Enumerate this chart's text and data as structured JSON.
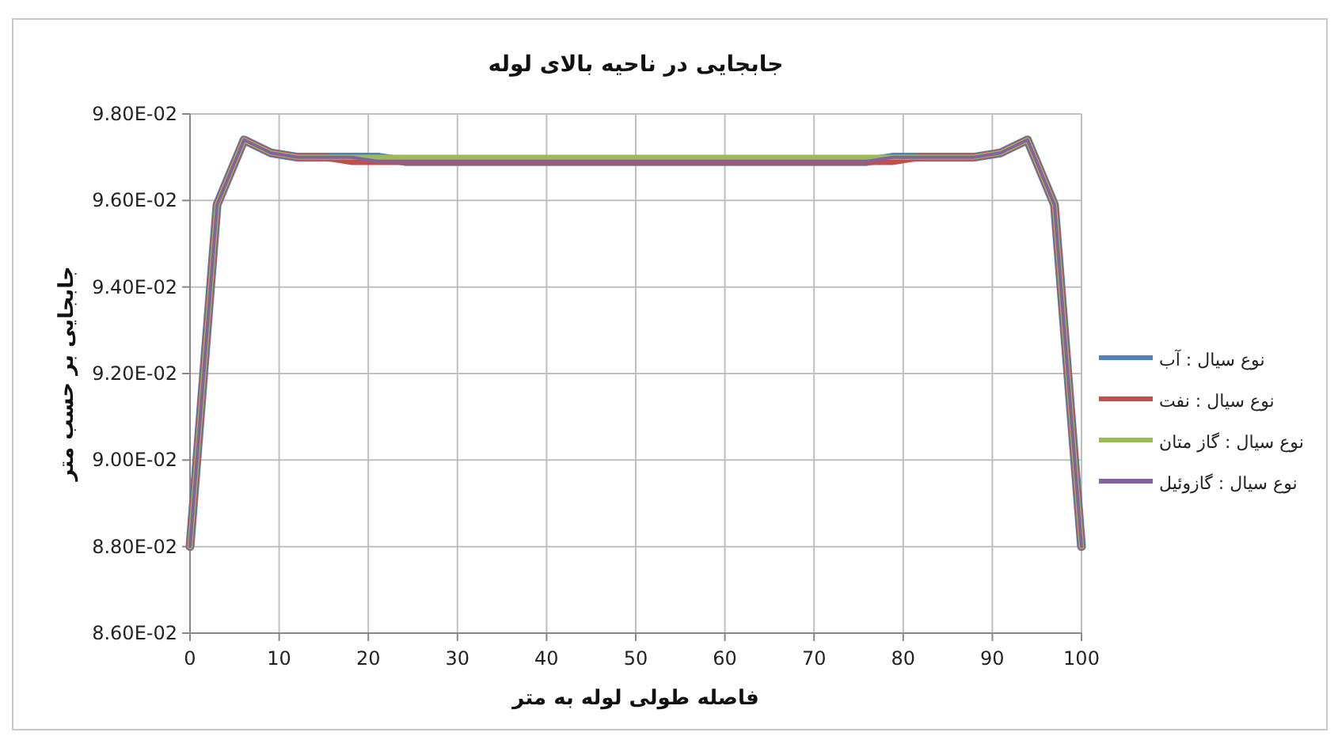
{
  "chart_data": {
    "type": "line",
    "title": "جابجایی در ناحیه بالای لوله",
    "xlabel": "فاصله طولی لوله به متر",
    "ylabel": "جابجایی بر حسب متر",
    "x": [
      0,
      3.03,
      6.06,
      9.09,
      12.12,
      15.15,
      18.18,
      21.21,
      24.24,
      27.27,
      30.3,
      33.33,
      36.36,
      39.39,
      42.42,
      45.45,
      48.48,
      51.52,
      54.55,
      57.58,
      60.61,
      63.64,
      66.67,
      69.7,
      72.73,
      75.76,
      78.79,
      81.82,
      84.85,
      87.88,
      90.91,
      93.94,
      96.97,
      100
    ],
    "series": [
      {
        "name": "نوع سیال : آب",
        "color": "#4f81bd",
        "values": [
          0.088,
          0.0959,
          0.0974,
          0.0971,
          0.097,
          0.097,
          0.097,
          0.097,
          0.0969,
          0.0969,
          0.0969,
          0.0969,
          0.0969,
          0.0969,
          0.0969,
          0.0969,
          0.0969,
          0.0969,
          0.0969,
          0.0969,
          0.0969,
          0.0969,
          0.0969,
          0.0969,
          0.0969,
          0.0969,
          0.097,
          0.097,
          0.097,
          0.097,
          0.0971,
          0.0974,
          0.0959,
          0.088
        ]
      },
      {
        "name": "نوع سیال : نفت",
        "color": "#c0504d",
        "values": [
          0.088,
          0.0959,
          0.0974,
          0.0971,
          0.097,
          0.097,
          0.0969,
          0.0969,
          0.0969,
          0.0969,
          0.0969,
          0.0969,
          0.0969,
          0.0969,
          0.0969,
          0.0969,
          0.0969,
          0.0969,
          0.0969,
          0.0969,
          0.0969,
          0.0969,
          0.0969,
          0.0969,
          0.0969,
          0.0969,
          0.0969,
          0.097,
          0.097,
          0.097,
          0.0971,
          0.0974,
          0.0959,
          0.088
        ]
      },
      {
        "name": "نوع سیال : گاز متان",
        "color": "#9bbb59",
        "values": [
          0.088,
          0.0959,
          0.0974,
          0.0971,
          0.097,
          0.097,
          0.097,
          0.097,
          0.097,
          0.097,
          0.097,
          0.097,
          0.097,
          0.097,
          0.097,
          0.097,
          0.097,
          0.097,
          0.097,
          0.097,
          0.097,
          0.097,
          0.097,
          0.097,
          0.097,
          0.097,
          0.097,
          0.097,
          0.097,
          0.097,
          0.0971,
          0.0974,
          0.0959,
          0.088
        ]
      },
      {
        "name": "نوع سیال : گازوئیل",
        "color": "#8064a2",
        "values": [
          0.088,
          0.0959,
          0.0974,
          0.0971,
          0.097,
          0.097,
          0.097,
          0.0969,
          0.0969,
          0.0969,
          0.0969,
          0.0969,
          0.0969,
          0.0969,
          0.0969,
          0.0969,
          0.0969,
          0.0969,
          0.0969,
          0.0969,
          0.0969,
          0.0969,
          0.0969,
          0.0969,
          0.0969,
          0.0969,
          0.097,
          0.097,
          0.097,
          0.097,
          0.0971,
          0.0974,
          0.0959,
          0.088
        ]
      }
    ],
    "xlim": [
      0,
      100
    ],
    "xticks": [
      0,
      10,
      20,
      30,
      40,
      50,
      60,
      70,
      80,
      90,
      100
    ],
    "ylim": [
      0.086,
      0.098
    ],
    "yticks": [
      {
        "value": 0.086,
        "label": "8.60E-02"
      },
      {
        "value": 0.088,
        "label": "8.80E-02"
      },
      {
        "value": 0.09,
        "label": "9.00E-02"
      },
      {
        "value": 0.092,
        "label": "9.20E-02"
      },
      {
        "value": 0.094,
        "label": "9.40E-02"
      },
      {
        "value": 0.096,
        "label": "9.60E-02"
      },
      {
        "value": 0.098,
        "label": "9.80E-02"
      }
    ],
    "grid": true,
    "legend": "right",
    "marker": "none",
    "line_style": "solid"
  }
}
